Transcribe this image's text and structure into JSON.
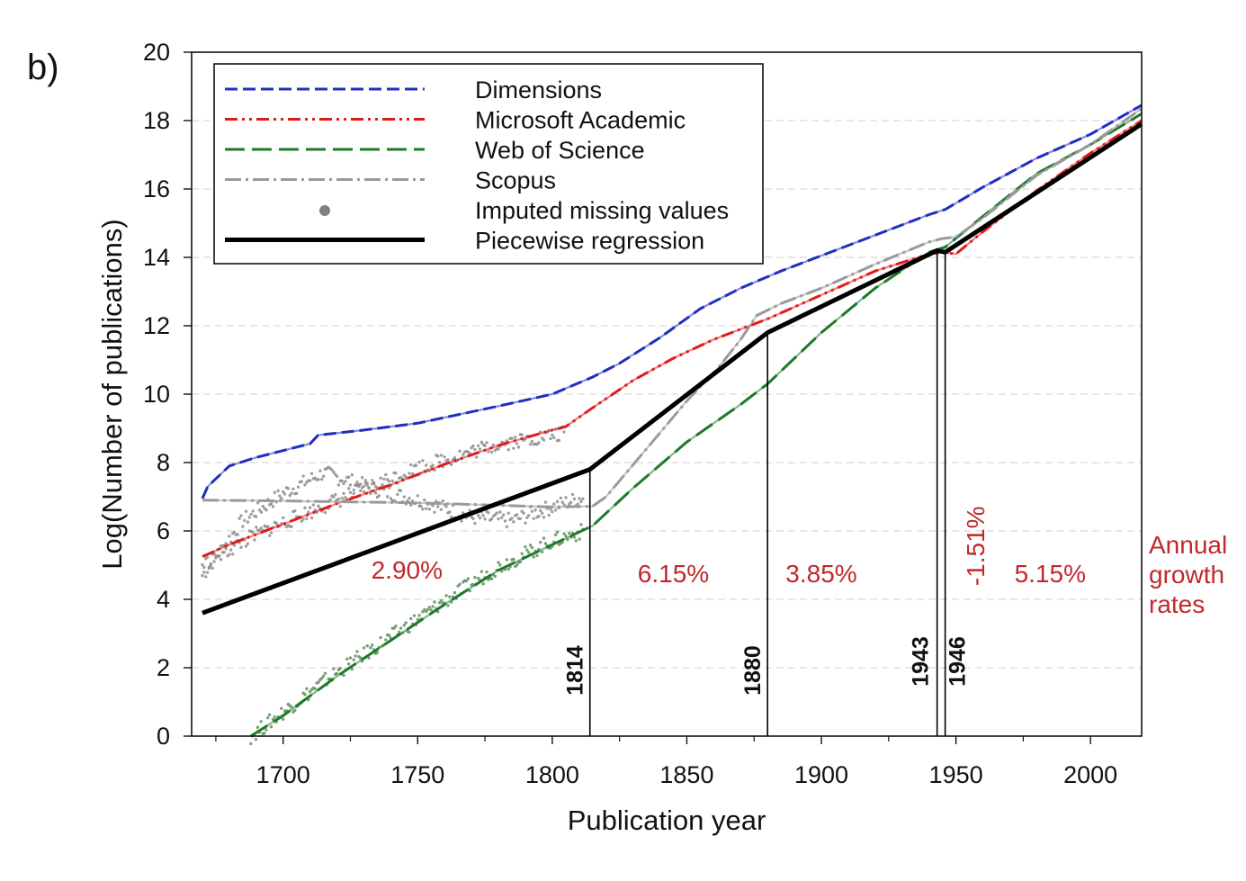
{
  "chart_data": {
    "type": "line",
    "panel_label": "b)",
    "xlabel": "Publication year",
    "ylabel": "Log(Number of publications)",
    "xlim": [
      1666,
      2019
    ],
    "ylim": [
      0,
      20
    ],
    "x_ticks": [
      1700,
      1750,
      1800,
      1850,
      1900,
      1950,
      2000
    ],
    "x_minor_ticks": [
      1675,
      1725,
      1775,
      1825,
      1875,
      1925,
      1975
    ],
    "y_ticks": [
      0,
      2,
      4,
      6,
      8,
      10,
      12,
      14,
      16,
      18,
      20
    ],
    "grid": "horizontal dashed",
    "legend": {
      "placement": "top-left",
      "entries": [
        {
          "label": "Dimensions",
          "color": "#1f2fbf",
          "style": "dashed"
        },
        {
          "label": "Microsoft Academic",
          "color": "#e01b1b",
          "style": "dashdotdot"
        },
        {
          "label": "Web of Science",
          "color": "#1e7a2a",
          "style": "longdash"
        },
        {
          "label": "Scopus",
          "color": "#9a9a9a",
          "style": "dashdot"
        },
        {
          "label": "Imputed missing values",
          "color": "#808080",
          "style": "marker"
        },
        {
          "label": "Piecewise regression",
          "color": "#000000",
          "style": "solid"
        }
      ]
    },
    "series": [
      {
        "name": "Dimensions",
        "color": "#1f2fbf",
        "x": [
          1670,
          1672,
          1676,
          1680,
          1690,
          1700,
          1710,
          1713,
          1730,
          1750,
          1780,
          1800,
          1815,
          1825,
          1840,
          1855,
          1870,
          1885,
          1900,
          1920,
          1940,
          1946,
          1960,
          1980,
          2000,
          2019
        ],
        "y": [
          6.95,
          7.3,
          7.6,
          7.9,
          8.15,
          8.35,
          8.55,
          8.8,
          8.95,
          9.15,
          9.65,
          10.0,
          10.5,
          10.9,
          11.65,
          12.5,
          13.1,
          13.6,
          14.05,
          14.65,
          15.25,
          15.4,
          16.05,
          16.9,
          17.6,
          18.45
        ]
      },
      {
        "name": "Microsoft Academic",
        "color": "#e01b1b",
        "x": [
          1670,
          1680,
          1700,
          1720,
          1740,
          1760,
          1780,
          1800,
          1805,
          1815,
          1830,
          1845,
          1860,
          1875,
          1880,
          1900,
          1920,
          1940,
          1945,
          1950,
          1960,
          1980,
          2000,
          2019
        ],
        "y": [
          5.25,
          5.6,
          6.2,
          6.8,
          7.35,
          7.95,
          8.5,
          8.95,
          9.05,
          9.6,
          10.4,
          11.05,
          11.6,
          12.05,
          12.2,
          12.9,
          13.6,
          14.1,
          14.15,
          14.1,
          14.75,
          15.95,
          17.05,
          18.0
        ]
      },
      {
        "name": "Web of Science",
        "color": "#1e7a2a",
        "x": [
          1688,
          1700,
          1720,
          1740,
          1760,
          1780,
          1800,
          1815,
          1830,
          1850,
          1870,
          1880,
          1900,
          1920,
          1940,
          1946,
          1960,
          1980,
          2000,
          2019
        ],
        "y": [
          0.0,
          0.6,
          1.75,
          2.8,
          3.85,
          4.85,
          5.6,
          6.15,
          7.25,
          8.6,
          9.7,
          10.3,
          11.8,
          13.1,
          14.15,
          14.3,
          15.2,
          16.45,
          17.3,
          18.2
        ]
      },
      {
        "name": "Scopus",
        "color": "#9a9a9a",
        "x": [
          1670,
          1700,
          1750,
          1780,
          1800,
          1815,
          1820,
          1835,
          1850,
          1862,
          1870,
          1876,
          1885,
          1900,
          1920,
          1940,
          1945,
          1950,
          1960,
          1980,
          2000,
          2019
        ],
        "y": [
          6.9,
          6.88,
          6.82,
          6.75,
          6.7,
          6.72,
          7.0,
          8.4,
          9.8,
          10.8,
          11.6,
          12.3,
          12.65,
          13.1,
          13.8,
          14.45,
          14.55,
          14.6,
          15.15,
          16.4,
          17.3,
          18.35
        ]
      },
      {
        "name": "Piecewise regression",
        "color": "#000000",
        "x": [
          1670,
          1814,
          1880,
          1943,
          1946,
          2019
        ],
        "y": [
          3.6,
          7.8,
          11.8,
          14.2,
          14.15,
          17.9
        ]
      }
    ],
    "imputed_points": [
      {
        "name": "Scopus imputed (early)",
        "x_range": [
          1670,
          1812
        ],
        "y_path": [
          [
            1670,
            4.7
          ],
          [
            1685,
            6.3
          ],
          [
            1700,
            7.1
          ],
          [
            1715,
            7.7
          ],
          [
            1735,
            7.2
          ],
          [
            1755,
            6.8
          ],
          [
            1770,
            6.4
          ],
          [
            1785,
            6.3
          ],
          [
            1800,
            6.7
          ],
          [
            1812,
            7.0
          ]
        ]
      },
      {
        "name": "Web of Science imputed (early)",
        "x_range": [
          1688,
          1812
        ],
        "y_path": [
          [
            1688,
            0.0
          ],
          [
            1700,
            0.7
          ],
          [
            1715,
            1.6
          ],
          [
            1740,
            2.9
          ],
          [
            1760,
            3.95
          ],
          [
            1780,
            4.95
          ],
          [
            1800,
            5.7
          ],
          [
            1812,
            6.0
          ]
        ]
      },
      {
        "name": "Microsoft Academic imputed (early)",
        "x_range": [
          1670,
          1805
        ],
        "y_path": [
          [
            1670,
            5.0
          ],
          [
            1690,
            5.9
          ],
          [
            1720,
            6.9
          ],
          [
            1750,
            7.85
          ],
          [
            1780,
            8.55
          ],
          [
            1805,
            8.85
          ]
        ]
      }
    ],
    "breakpoints": [
      {
        "year": "1814",
        "x": 1814
      },
      {
        "year": "1880",
        "x": 1880
      },
      {
        "year": "1943",
        "x": 1943
      },
      {
        "year": "1946",
        "x": 1946
      }
    ],
    "growth_rates": [
      {
        "label": "2.90%",
        "x": 1746,
        "y": 4.6,
        "rotated": false
      },
      {
        "label": "6.15%",
        "x": 1845,
        "y": 4.5,
        "rotated": false
      },
      {
        "label": "3.85%",
        "x": 1900,
        "y": 4.5,
        "rotated": false
      },
      {
        "label": "-1.51%",
        "x": 1929,
        "y": 5.4,
        "rotated": true
      },
      {
        "label": "5.15%",
        "x": 1985,
        "y": 4.5,
        "rotated": false
      }
    ],
    "growth_annotation": [
      "Annual",
      "growth",
      "rates"
    ],
    "annotation_color": "#c0292b"
  }
}
